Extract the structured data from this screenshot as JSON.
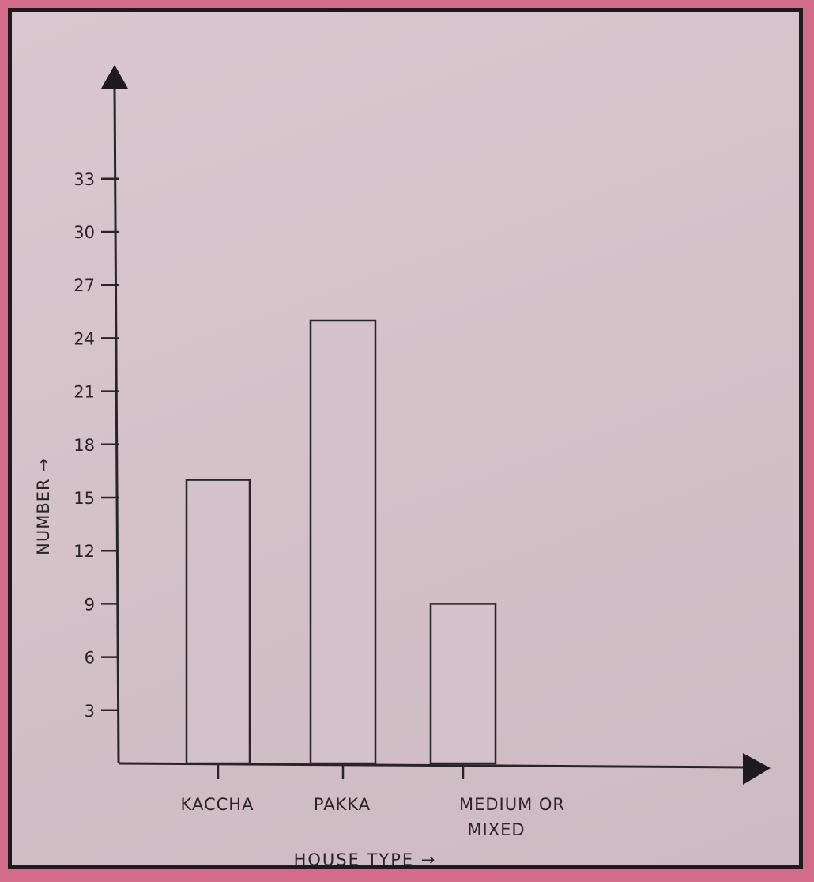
{
  "chart_data": {
    "type": "bar",
    "categories": [
      "KACCHA",
      "PAKKA",
      "MEDIUM OR MIXED"
    ],
    "category_lines": [
      [
        "KACCHA"
      ],
      [
        "PAKKA"
      ],
      [
        "MEDIUM OR",
        "MIXED"
      ]
    ],
    "values": [
      16,
      25,
      9
    ],
    "title": "",
    "xlabel": "HOUSE TYPE →",
    "ylabel": "NUMBER →",
    "yticks": [
      3,
      6,
      9,
      12,
      15,
      18,
      21,
      24,
      27,
      30,
      33
    ],
    "ylim": [
      0,
      33
    ],
    "grid": false,
    "legend": "none",
    "colors": {
      "bar_fill": "#d3c2c9",
      "ink": "#2a2428",
      "paper": "#d6c5cc",
      "border": "#d36b8c"
    }
  }
}
